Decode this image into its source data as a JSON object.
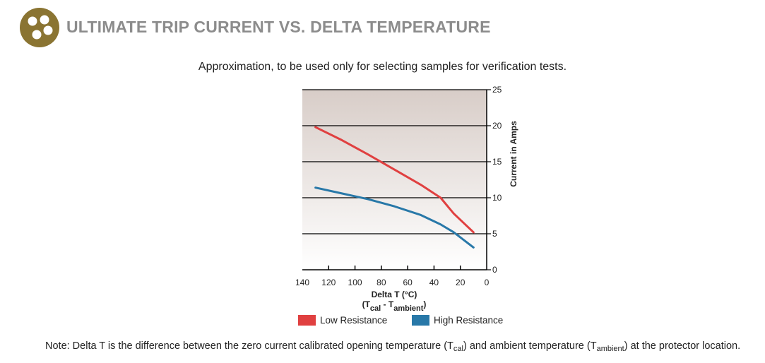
{
  "header": {
    "title": "ULTIMATE TRIP CURRENT VS. DELTA TEMPERATURE",
    "subtitle": "Approximation, to be used only for selecting samples for verification tests.",
    "logo_color": "#8a7432"
  },
  "chart_data": {
    "type": "line",
    "xlabel": "Delta T (°C)",
    "xlabel_sub_prefix": "(T",
    "xlabel_sub_cal": "cal",
    "xlabel_sub_minus": " - T",
    "xlabel_sub_ambient": "ambient",
    "xlabel_sub_suffix": ")",
    "ylabel": "Current in Amps",
    "x_ticks": [
      "140",
      "120",
      "100",
      "80",
      "60",
      "40",
      "20",
      "0"
    ],
    "y_ticks": [
      "0",
      "5",
      "10",
      "15",
      "20",
      "25"
    ],
    "xlim": [
      140,
      0
    ],
    "ylim": [
      0,
      25
    ],
    "x_reversed": true,
    "grid": true,
    "background_gradient": [
      "#d8cdc8",
      "#ffffff"
    ],
    "series": [
      {
        "name": "Low Resistance",
        "color": "#e04040",
        "x": [
          130,
          110,
          90,
          70,
          50,
          35,
          25,
          10
        ],
        "y": [
          19.8,
          18.0,
          16.0,
          13.9,
          11.8,
          10.0,
          7.8,
          5.2
        ]
      },
      {
        "name": "High Resistance",
        "color": "#2878a8",
        "x": [
          130,
          110,
          90,
          70,
          50,
          35,
          25,
          10
        ],
        "y": [
          11.4,
          10.6,
          9.8,
          8.8,
          7.6,
          6.3,
          5.2,
          3.1
        ]
      }
    ],
    "legend_position": "bottom"
  },
  "note": {
    "prefix": "Note: Delta T is the difference between the zero current calibrated opening temperature (T",
    "sub1": "cal",
    "middle": ") and ambient temperature (T",
    "sub2": "ambient",
    "suffix": ") at the protector location."
  }
}
